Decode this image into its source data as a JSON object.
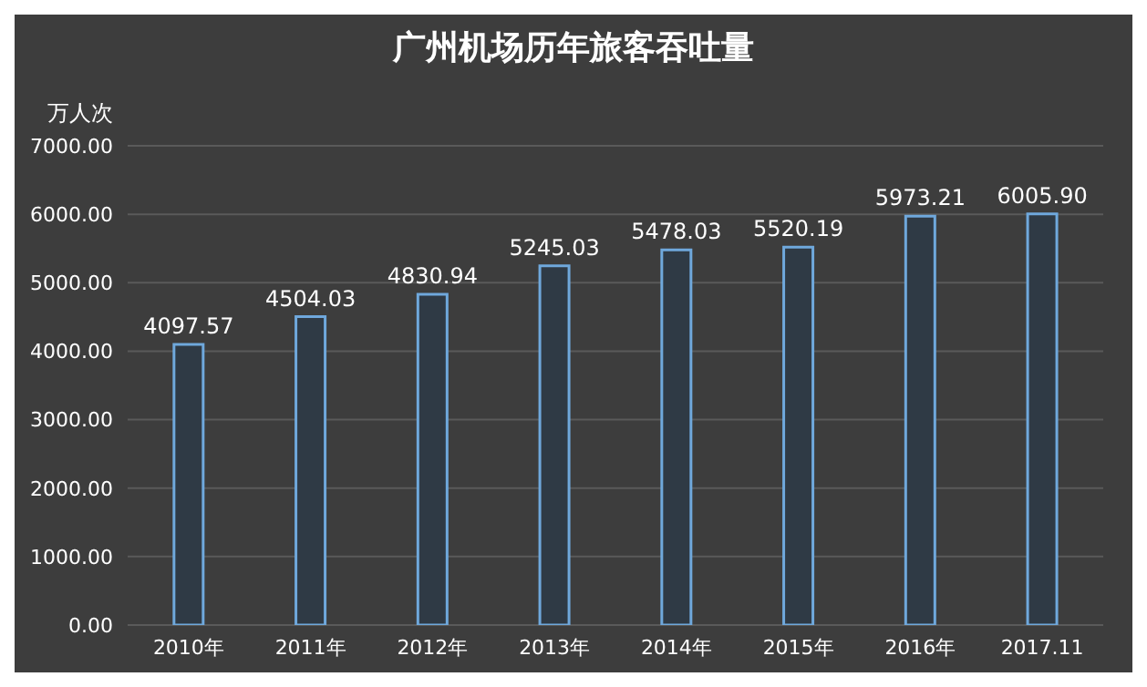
{
  "chart_data": {
    "type": "bar",
    "title": "广州机场历年旅客吞吐量",
    "ylabel": "万人次",
    "categories": [
      "2010年",
      "2011年",
      "2012年",
      "2013年",
      "2014年",
      "2015年",
      "2016年",
      "2017.11"
    ],
    "values": [
      4097.57,
      4504.03,
      4830.94,
      5245.03,
      5478.03,
      5520.19,
      5973.21,
      6005.9
    ],
    "value_labels": [
      "4097.57",
      "4504.03",
      "4830.94",
      "5245.03",
      "5478.03",
      "5520.19",
      "5973.21",
      "6005.90"
    ],
    "color": "#6fa8dc",
    "ylim": [
      0,
      7000
    ],
    "yticks": [
      {
        "value": 0,
        "label": "0.00"
      },
      {
        "value": 1000,
        "label": "1000.00"
      },
      {
        "value": 2000,
        "label": "2000.00"
      },
      {
        "value": 3000,
        "label": "3000.00"
      },
      {
        "value": 4000,
        "label": "4000.00"
      },
      {
        "value": 5000,
        "label": "5000.00"
      },
      {
        "value": 6000,
        "label": "6000.00"
      },
      {
        "value": 7000,
        "label": "7000.00"
      }
    ],
    "grid": "y"
  }
}
